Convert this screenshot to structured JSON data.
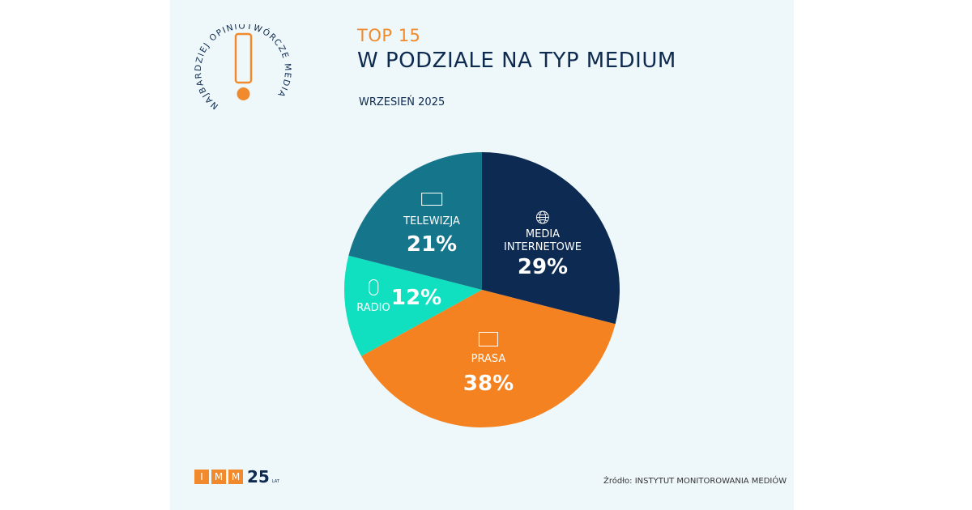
{
  "badge": {
    "circle_text": "NAJBARDZIEJ OPINIOTWÓRCZE MEDIA"
  },
  "header": {
    "title_top": "TOP 15",
    "title_main": "W PODZIALE NA TYP MEDIUM",
    "date": "WRZESIEŃ 2025"
  },
  "chart_data": {
    "type": "pie",
    "start": "12 o'clock, clockwise",
    "slices": [
      {
        "label": "MEDIA INTERNETOWE",
        "value": 29,
        "display": "29%",
        "color": "#0d2a52",
        "icon": "globe-icon"
      },
      {
        "label": "PRASA",
        "value": 38,
        "display": "38%",
        "color": "#f58220",
        "icon": "newspaper-icon"
      },
      {
        "label": "RADIO",
        "value": 12,
        "display": "12%",
        "color": "#10e0bf",
        "icon": "microphone-icon"
      },
      {
        "label": "TELEWIZJA",
        "value": 21,
        "display": "21%",
        "color": "#15758b",
        "icon": "tv-icon"
      }
    ]
  },
  "footer": {
    "logo_letters": [
      "I",
      "M",
      "M"
    ],
    "logo_number": "25",
    "logo_sub": "LAT",
    "source": "Źródło: INSTYTUT MONITOROWANIA MEDIÓW"
  }
}
